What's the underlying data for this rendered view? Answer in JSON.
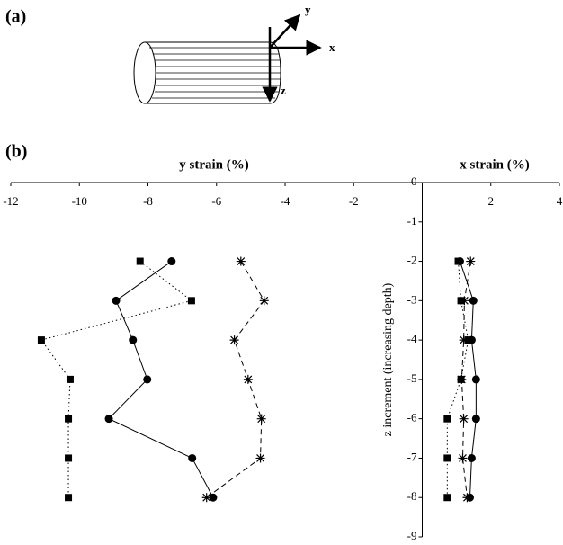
{
  "diagram": {
    "panel_label": "(a)",
    "axis_y": "y",
    "axis_x": "x",
    "axis_z": "z"
  },
  "chart_data": {
    "type": "scatter",
    "panel_label": "(b)",
    "title_left": "y strain (%)",
    "title_right": "x strain (%)",
    "y_label": "z increment (increasing depth)",
    "xlim": [
      -12,
      4
    ],
    "xticks": [
      -12,
      -10,
      -8,
      -6,
      -4,
      -2,
      2,
      4
    ],
    "ylim": [
      -9,
      0
    ],
    "yticks": [
      0,
      -1,
      -2,
      -3,
      -4,
      -5,
      -6,
      -7,
      -8,
      -9
    ],
    "z": [
      -2,
      -3,
      -4,
      -5,
      -6,
      -7,
      -8
    ],
    "series": [
      {
        "marker": "square",
        "dash": "dotted",
        "color": "#000",
        "y_strain": [
          -8.23,
          -6.73,
          -11.11,
          -10.27,
          -10.32,
          -10.32,
          -10.32
        ],
        "x_strain": [
          1.05,
          1.13,
          1.34,
          1.13,
          0.73,
          0.73,
          0.73
        ]
      },
      {
        "marker": "circle",
        "dash": "solid",
        "color": "#000",
        "y_strain": [
          -7.31,
          -8.93,
          -8.44,
          -8.02,
          -9.14,
          -6.71,
          -6.1
        ],
        "x_strain": [
          1.1,
          1.49,
          1.44,
          1.57,
          1.57,
          1.44,
          1.39
        ]
      },
      {
        "marker": "star",
        "dash": "dashed",
        "color": "#000",
        "y_strain": [
          -5.29,
          -4.61,
          -5.48,
          -5.08,
          -4.69,
          -4.72,
          -6.29
        ],
        "x_strain": [
          1.41,
          1.23,
          1.21,
          1.15,
          1.21,
          1.18,
          1.31
        ]
      }
    ]
  }
}
